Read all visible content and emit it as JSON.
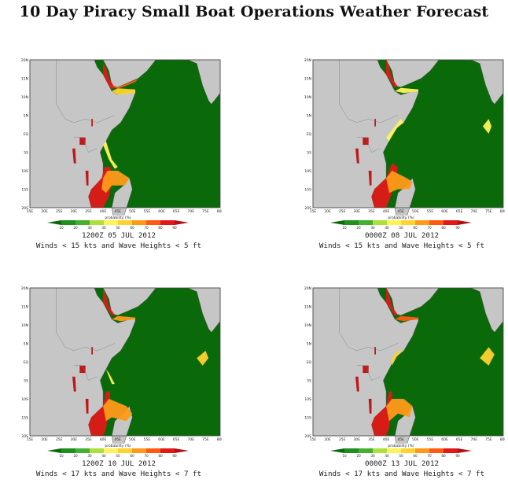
{
  "title": "10 Day Piracy Small Boat Operations Weather Forecast",
  "map": {
    "lat_ticks": [
      "20N",
      "15N",
      "10N",
      "5N",
      "EQ",
      "5S",
      "10S",
      "15S",
      "20S"
    ],
    "lon_ticks": [
      "15E",
      "20E",
      "25E",
      "30E",
      "35E",
      "40E",
      "45E",
      "50E",
      "55E",
      "60E",
      "65E",
      "70E",
      "75E",
      "80E"
    ]
  },
  "legend": {
    "title": "probability (%)",
    "ticks": [
      "10",
      "20",
      "30",
      "40",
      "50",
      "60",
      "70",
      "80",
      "90"
    ],
    "colors": [
      "#0a6a0a",
      "#1f8f1f",
      "#45b030",
      "#aee03c",
      "#fff35a",
      "#ffd22e",
      "#ff9a18",
      "#ff5a10",
      "#e21818",
      "#b01010"
    ]
  },
  "panels": [
    {
      "time": "1200Z 05 JUL 2012",
      "condition": "Winds < 15 kts and Wave Heights < 5 ft"
    },
    {
      "time": "0000Z 08 JUL 2012",
      "condition": "Winds < 15 kts and Wave Heights < 5 ft"
    },
    {
      "time": "1200Z 10 JUL 2012",
      "condition": "Winds < 17 kts and Wave Heights < 7 ft"
    },
    {
      "time": "0000Z 13 JUL 2012",
      "condition": "Winds < 17 kts and Wave Heights < 7 ft"
    }
  ],
  "colors": {
    "land": "#c6c6c6",
    "sea_low": "#0a6a0a",
    "border": "#444444"
  }
}
